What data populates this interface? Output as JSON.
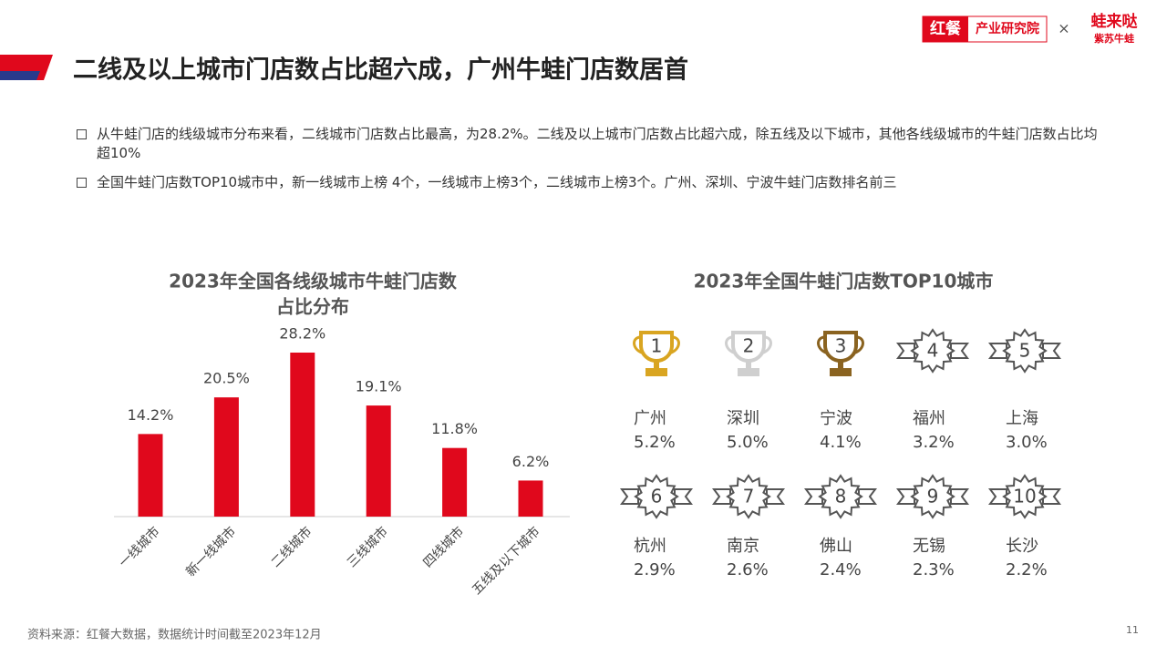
{
  "header": {
    "title": "二线及以上城市门店数占比超六成，广州牛蛙门店数居首",
    "logo_brand": "红餐",
    "logo_org": "产业研究院",
    "logo_x": "×",
    "partner_name": "蛙来哒",
    "partner_sub": "紫苏牛蛙"
  },
  "bullets": [
    "从牛蛙门店的线级城市分布来看，二线城市门店数占比最高，为28.2%。二线及以上城市门店数占比超六成，除五线及以下城市，其他各线级城市的牛蛙门店数占比均超10%",
    "全国牛蛙门店数TOP10城市中，新一线城市上榜 4个，一线城市上榜3个，二线城市上榜3个。广州、深圳、宁波牛蛙门店数排名前三"
  ],
  "chart_data": {
    "type": "bar",
    "title": "2023年全国各线级城市牛蛙门店数",
    "subtitle": "占比分布",
    "categories": [
      "一线城市",
      "新一线城市",
      "二线城市",
      "三线城市",
      "四线城市",
      "五线及以下城市"
    ],
    "values": [
      14.2,
      20.5,
      28.2,
      19.1,
      11.8,
      6.2
    ],
    "value_labels": [
      "14.2%",
      "20.5%",
      "28.2%",
      "19.1%",
      "11.8%",
      "6.2%"
    ],
    "color": "#e0081c"
  },
  "ranking": {
    "title": "2023年全国牛蛙门店数TOP10城市",
    "items": [
      {
        "rank": "1",
        "city": "广州",
        "share": "5.2%"
      },
      {
        "rank": "2",
        "city": "深圳",
        "share": "5.0%"
      },
      {
        "rank": "3",
        "city": "宁波",
        "share": "4.1%"
      },
      {
        "rank": "4",
        "city": "福州",
        "share": "3.2%"
      },
      {
        "rank": "5",
        "city": "上海",
        "share": "3.0%"
      },
      {
        "rank": "6",
        "city": "杭州",
        "share": "2.9%"
      },
      {
        "rank": "7",
        "city": "南京",
        "share": "2.6%"
      },
      {
        "rank": "8",
        "city": "佛山",
        "share": "2.4%"
      },
      {
        "rank": "9",
        "city": "无锡",
        "share": "2.3%"
      },
      {
        "rank": "10",
        "city": "长沙",
        "share": "2.2%"
      }
    ]
  },
  "footer": {
    "source": "资料来源：红餐大数据，数据统计时间截至2023年12月",
    "page": "11"
  }
}
